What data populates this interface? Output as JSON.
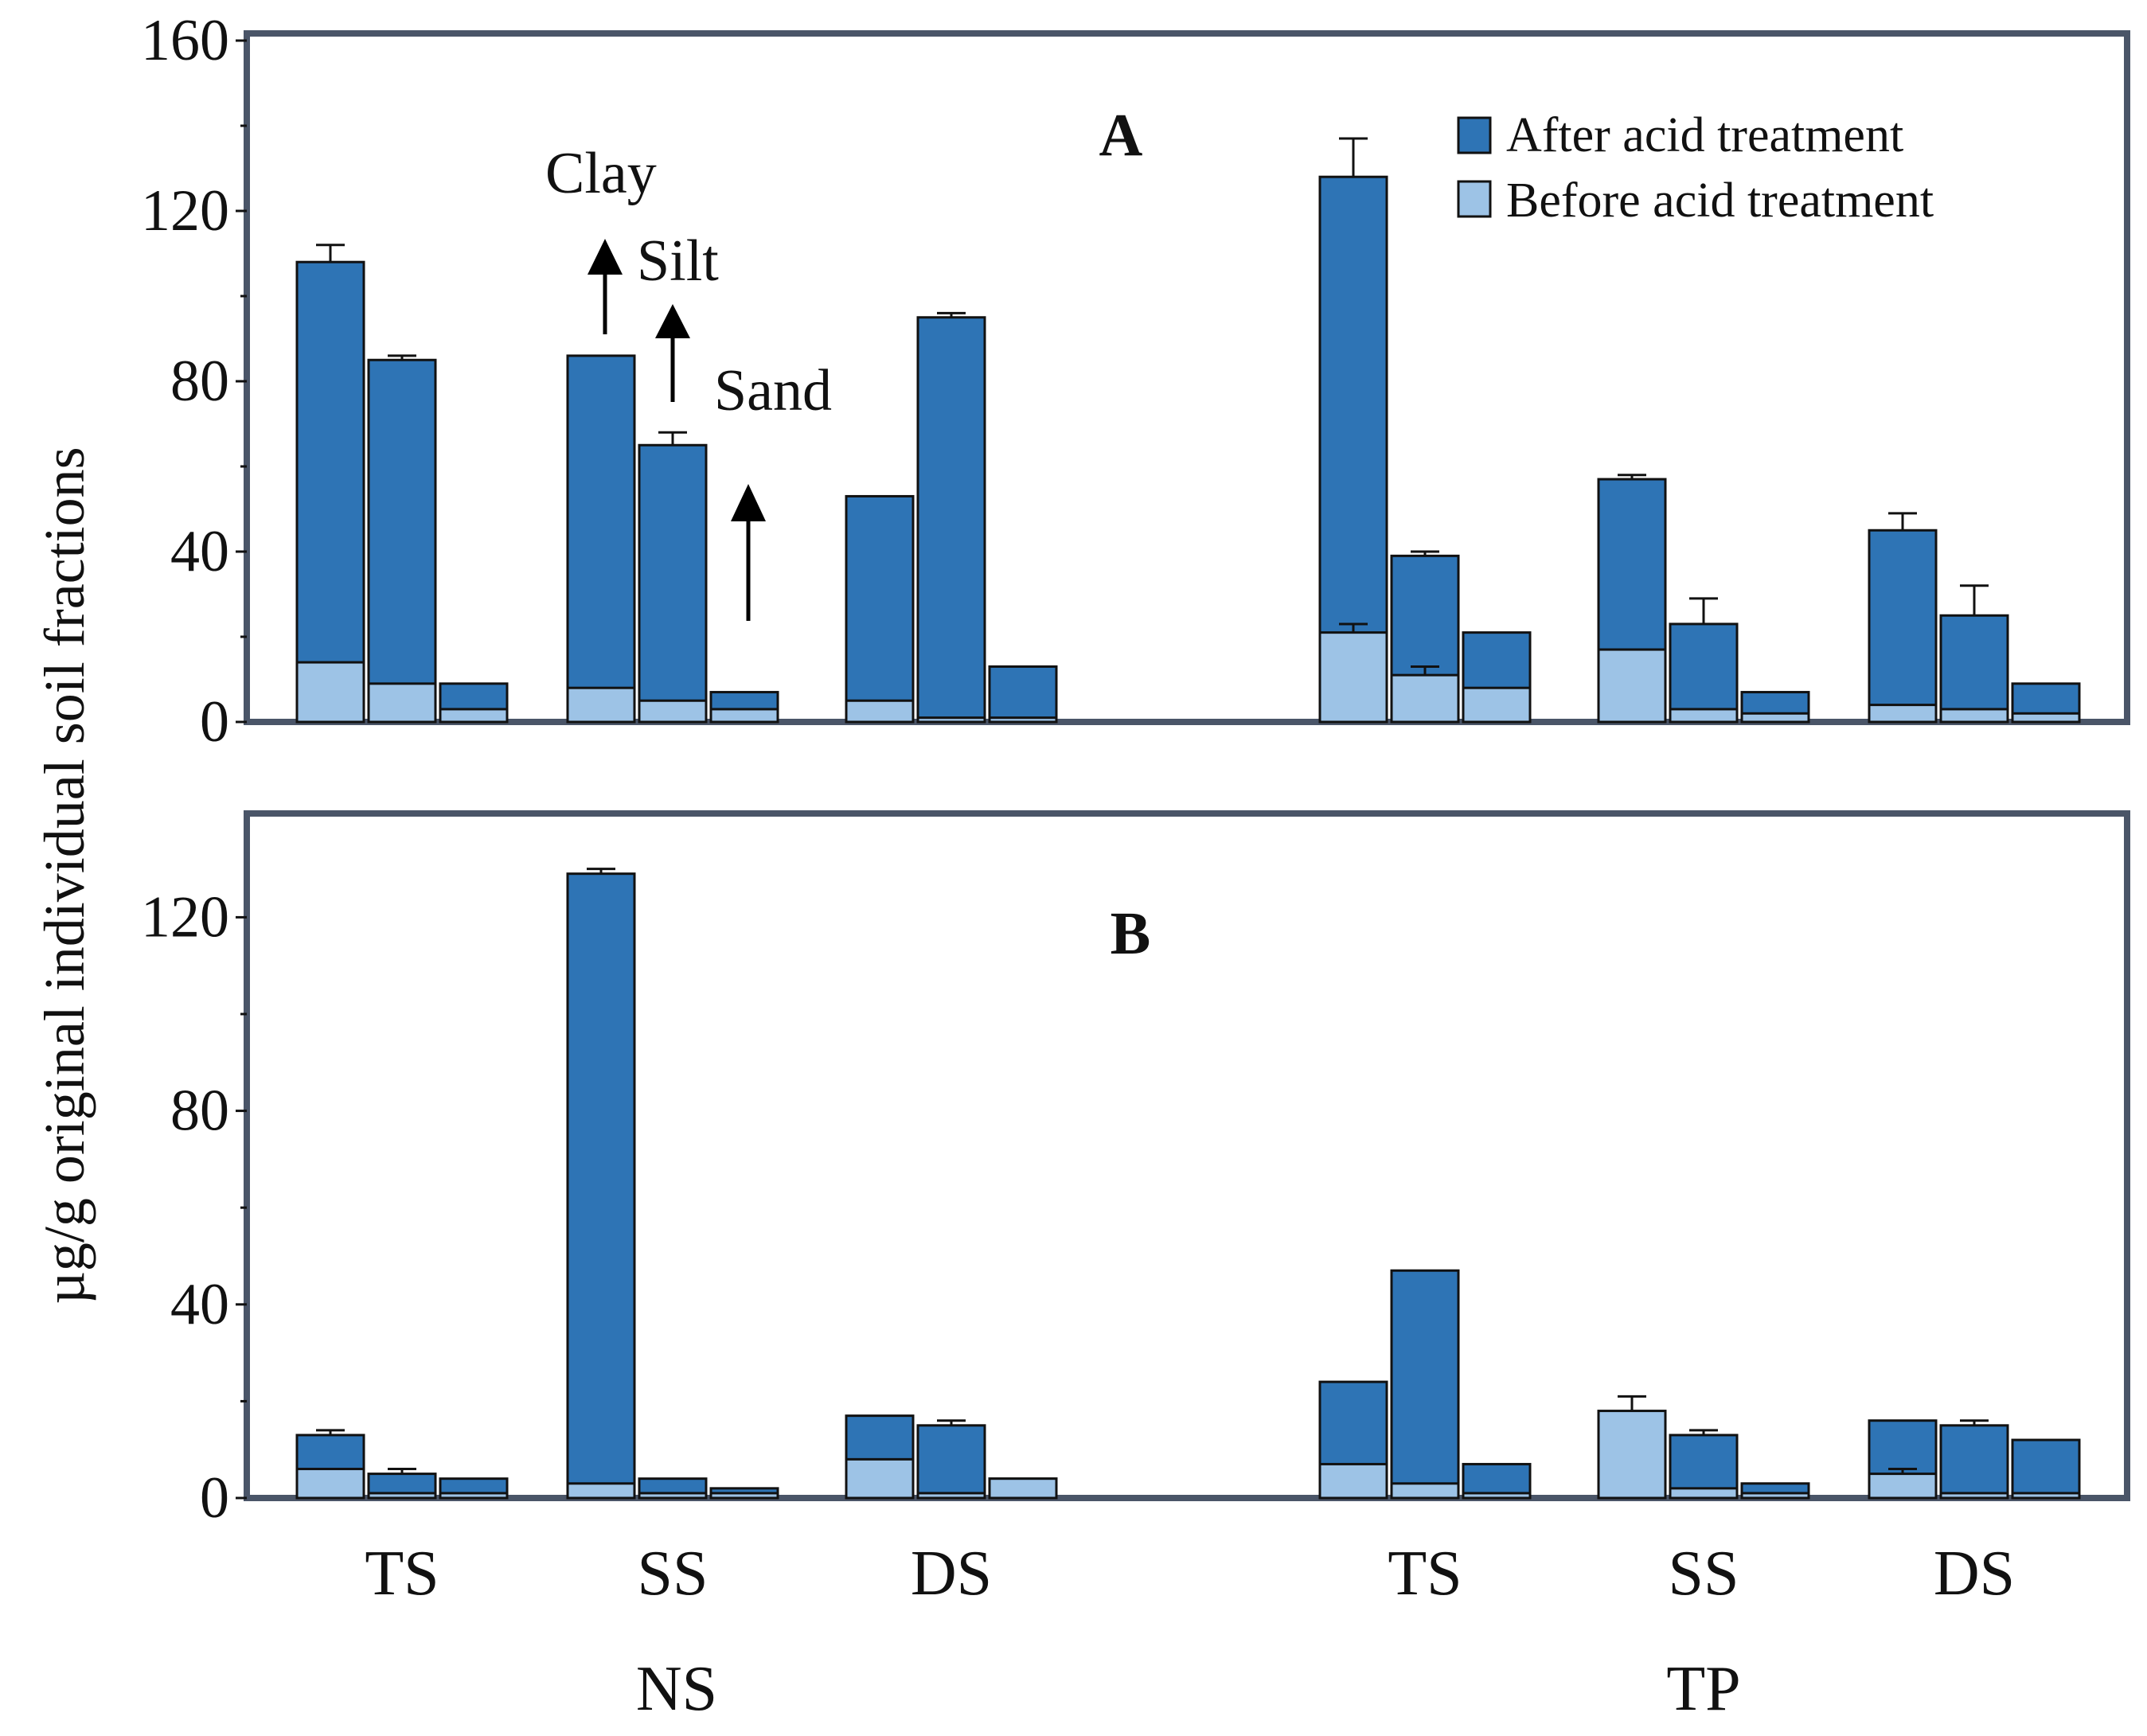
{
  "chart_data": {
    "type": "bar",
    "ylabel": "µg/g original individual soil fractions",
    "series_names": [
      "After acid treatment",
      "Before acid treatment"
    ],
    "colors": {
      "after": "#2e74b5",
      "before": "#9dc3e6"
    },
    "fractions": [
      "Clay",
      "Silt",
      "Sand"
    ],
    "groups": [
      {
        "site": "NS",
        "label": "TS"
      },
      {
        "site": "NS",
        "label": "SS"
      },
      {
        "site": "NS",
        "label": "DS"
      },
      {
        "site": "TP",
        "label": "TS"
      },
      {
        "site": "TP",
        "label": "SS"
      },
      {
        "site": "TP",
        "label": "DS"
      }
    ],
    "sites": [
      "NS",
      "TP"
    ],
    "panels": [
      {
        "label": "A",
        "ylim": [
          0,
          160
        ],
        "yticks": [
          0,
          40,
          80,
          120,
          160
        ],
        "yticks_text": [
          "0",
          "40",
          "80",
          "120",
          "160"
        ],
        "after": [
          [
            108,
            85,
            9
          ],
          [
            86,
            65,
            7
          ],
          [
            53,
            95,
            13
          ],
          [
            128,
            39,
            21
          ],
          [
            57,
            23,
            7
          ],
          [
            45,
            25,
            9
          ]
        ],
        "after_err": [
          [
            4,
            1,
            0
          ],
          [
            0,
            3,
            0
          ],
          [
            0,
            1,
            0
          ],
          [
            9,
            1,
            0
          ],
          [
            1,
            6,
            0
          ],
          [
            4,
            7,
            0
          ]
        ],
        "before": [
          [
            14,
            9,
            3
          ],
          [
            8,
            5,
            3
          ],
          [
            5,
            1,
            1
          ],
          [
            21,
            11,
            8
          ],
          [
            17,
            3,
            2
          ],
          [
            4,
            3,
            2
          ]
        ],
        "before_err": [
          [
            0,
            0,
            0
          ],
          [
            0,
            0,
            0
          ],
          [
            0,
            0,
            0
          ],
          [
            2,
            2,
            0
          ],
          [
            0,
            0,
            0
          ],
          [
            0,
            0,
            0
          ]
        ],
        "legend": [
          "After acid treatment",
          "Before acid treatment"
        ],
        "annotations": [
          "Clay",
          "Silt",
          "Sand"
        ]
      },
      {
        "label": "B",
        "ylim": [
          0,
          140
        ],
        "yticks": [
          0,
          40,
          80,
          120
        ],
        "yticks_text": [
          "0",
          "40",
          "80",
          "120"
        ],
        "after": [
          [
            13,
            5,
            4
          ],
          [
            129,
            4,
            2
          ],
          [
            17,
            15,
            4
          ],
          [
            24,
            47,
            7
          ],
          [
            0,
            13,
            3
          ],
          [
            16,
            15,
            12
          ]
        ],
        "after_err": [
          [
            1,
            1,
            0
          ],
          [
            1,
            0,
            0
          ],
          [
            0,
            1,
            0
          ],
          [
            0,
            0,
            0
          ],
          [
            0,
            1,
            0
          ],
          [
            0,
            1,
            0
          ]
        ],
        "before": [
          [
            6,
            1,
            1
          ],
          [
            3,
            1,
            1
          ],
          [
            8,
            1,
            4
          ],
          [
            7,
            3,
            1
          ],
          [
            18,
            2,
            1
          ],
          [
            5,
            1,
            1
          ]
        ],
        "before_err": [
          [
            0,
            0,
            0
          ],
          [
            0,
            0,
            0
          ],
          [
            0,
            0,
            0
          ],
          [
            0,
            0,
            0
          ],
          [
            3,
            0,
            0
          ],
          [
            1,
            0,
            0
          ]
        ]
      }
    ]
  }
}
